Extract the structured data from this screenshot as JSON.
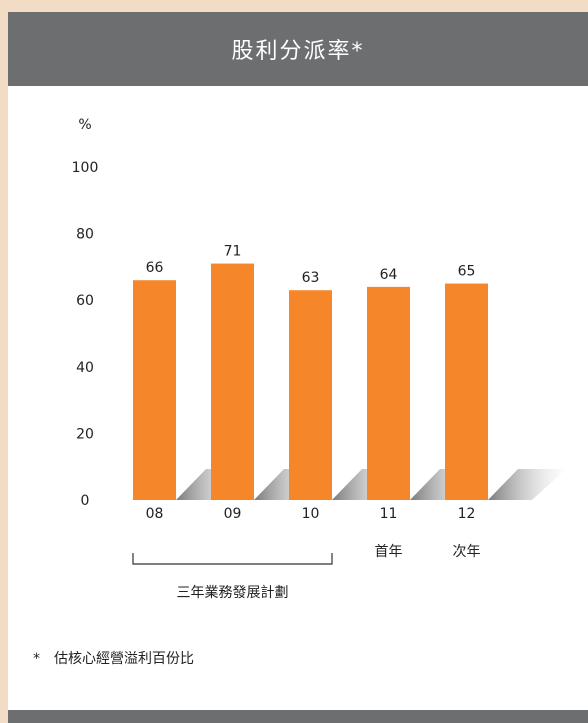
{
  "header": {
    "title": "股利分派率*"
  },
  "chart_data": {
    "type": "bar",
    "title": "股利分派率*",
    "ylabel": "%",
    "ylim": [
      0,
      100
    ],
    "yticks": [
      0,
      20,
      40,
      60,
      80,
      100
    ],
    "categories": [
      "08",
      "09",
      "10",
      "11",
      "12"
    ],
    "values": [
      66,
      71,
      63,
      64,
      65
    ],
    "sublabels": [
      "",
      "",
      "",
      "首年",
      "次年"
    ],
    "bracket": {
      "label": "三年業務發展計劃",
      "from": "08",
      "to": "10"
    },
    "colors": {
      "bar": "#f5872a",
      "shadow": "#9a9a9a"
    }
  },
  "footnote": {
    "marker": "*",
    "text": "估核心經營溢利百份比"
  }
}
